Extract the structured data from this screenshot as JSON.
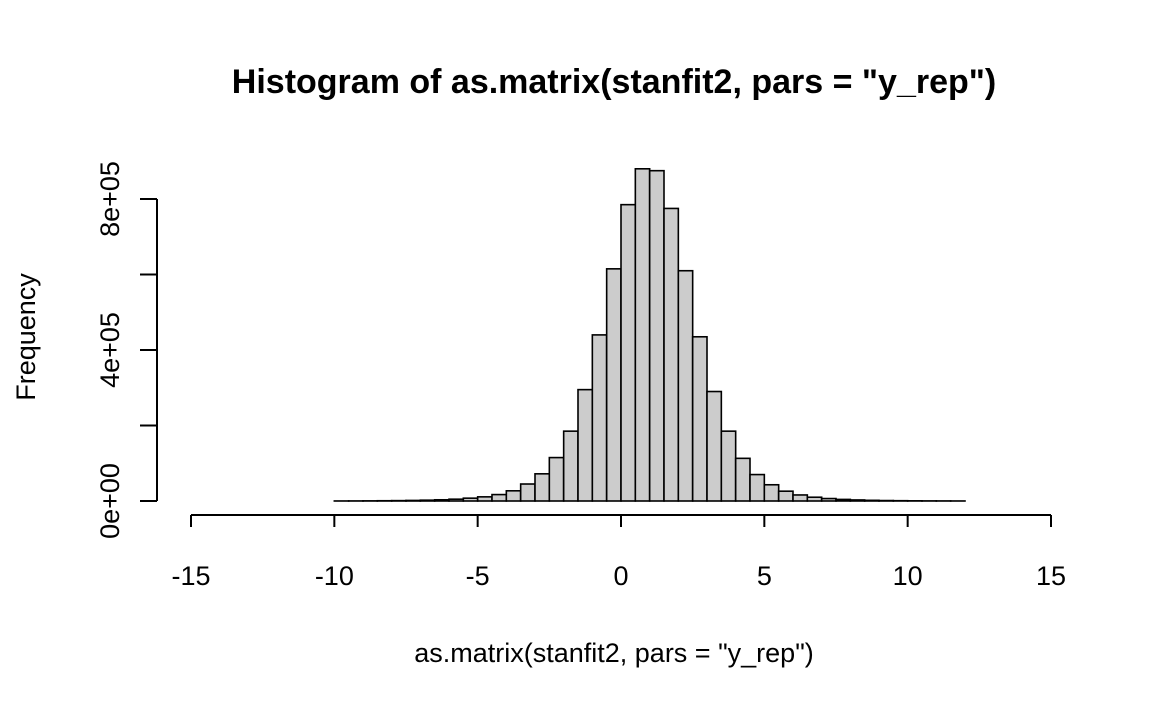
{
  "chart_data": {
    "type": "bar",
    "title": "Histogram of as.matrix(stanfit2, pars = \"y_rep\")",
    "xlabel": "as.matrix(stanfit2, pars = \"y_rep\")",
    "ylabel": "Frequency",
    "xlim": [
      -15,
      15
    ],
    "ylim": [
      0,
      800000
    ],
    "x_ticks": [
      -15,
      -10,
      -5,
      0,
      5,
      10,
      15
    ],
    "x_tick_labels": [
      "-15",
      "-10",
      "-5",
      "0",
      "5",
      "10",
      "15"
    ],
    "y_ticks": [
      0,
      200000,
      400000,
      600000,
      800000
    ],
    "y_tick_labels": [
      "0e+00",
      "",
      "4e+05",
      "",
      "8e+05"
    ],
    "bin_width": 0.5,
    "bin_start": -15,
    "values": [
      0,
      0,
      0,
      0,
      0,
      0,
      0,
      0,
      0,
      0,
      100,
      200,
      400,
      700,
      1000,
      1500,
      2200,
      3200,
      4800,
      7500,
      11000,
      17000,
      27000,
      45000,
      72000,
      115000,
      185000,
      295000,
      440000,
      615000,
      785000,
      880000,
      875000,
      775000,
      610000,
      435000,
      290000,
      185000,
      113000,
      70000,
      43000,
      26000,
      16000,
      10000,
      6500,
      4200,
      2800,
      1800,
      1200,
      800,
      500,
      300,
      200,
      100,
      0,
      0,
      0,
      0,
      0,
      0
    ],
    "grid": false,
    "colors": {
      "bar_fill": "#cccccc",
      "bar_stroke": "#000000"
    }
  }
}
